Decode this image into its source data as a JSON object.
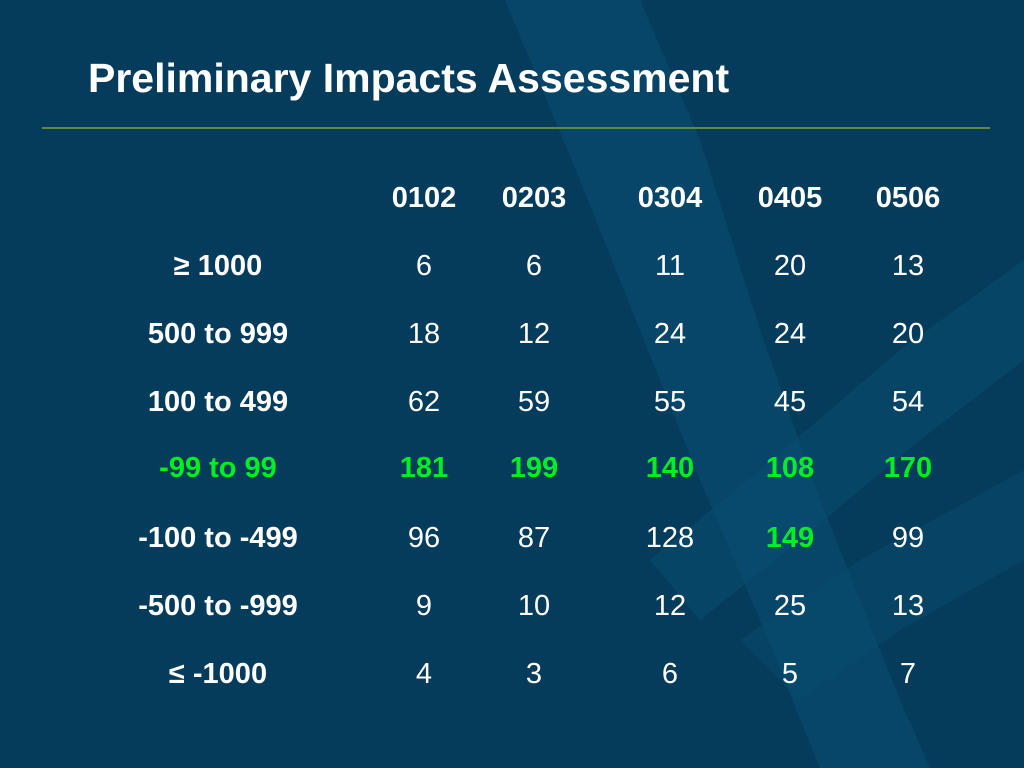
{
  "title": "Preliminary Impacts Assessment",
  "colors": {
    "background": "#053c5c",
    "text": "#ffffff",
    "highlight": "#00ee22",
    "rule": "#5f8a3c"
  },
  "table": {
    "columns": [
      "0102",
      "0203",
      "0304",
      "0405",
      "0506"
    ],
    "rows": [
      {
        "label": "≥ 1000",
        "values": [
          "6",
          "6",
          "11",
          "20",
          "13"
        ],
        "label_highlight": false,
        "highlight": [
          false,
          false,
          false,
          false,
          false
        ]
      },
      {
        "label": "500 to 999",
        "values": [
          "18",
          "12",
          "24",
          "24",
          "20"
        ],
        "label_highlight": false,
        "highlight": [
          false,
          false,
          false,
          false,
          false
        ]
      },
      {
        "label": "100 to 499",
        "values": [
          "62",
          "59",
          "55",
          "45",
          "54"
        ],
        "label_highlight": false,
        "highlight": [
          false,
          false,
          false,
          false,
          false
        ]
      },
      {
        "label": "-99 to 99",
        "values": [
          "181",
          "199",
          "140",
          "108",
          "170"
        ],
        "label_highlight": true,
        "highlight": [
          true,
          true,
          true,
          true,
          true
        ]
      },
      {
        "label": "-100 to -499",
        "values": [
          "96",
          "87",
          "128",
          "149",
          "99"
        ],
        "label_highlight": false,
        "highlight": [
          false,
          false,
          false,
          true,
          false
        ]
      },
      {
        "label": "-500 to -999",
        "values": [
          "9",
          "10",
          "12",
          "25",
          "13"
        ],
        "label_highlight": false,
        "highlight": [
          false,
          false,
          false,
          false,
          false
        ]
      },
      {
        "label": "≤ -1000",
        "values": [
          "4",
          "3",
          "6",
          "5",
          "7"
        ],
        "label_highlight": false,
        "highlight": [
          false,
          false,
          false,
          false,
          false
        ]
      }
    ]
  }
}
